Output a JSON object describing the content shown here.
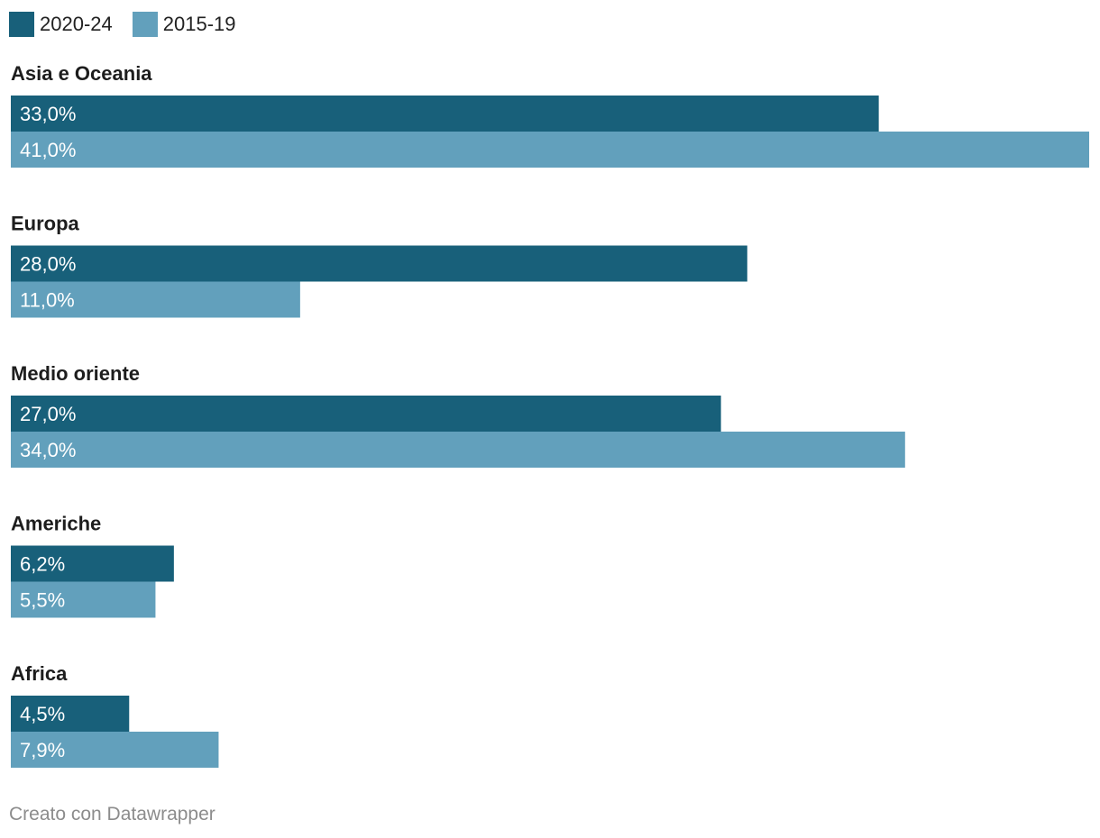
{
  "chart_data": {
    "type": "bar",
    "orientation": "horizontal",
    "categories": [
      "Asia e Oceania",
      "Europa",
      "Medio oriente",
      "Americhe",
      "Africa"
    ],
    "series": [
      {
        "name": "2020-24",
        "color": "#18607a",
        "values": [
          33.0,
          28.0,
          27.0,
          6.2,
          4.5
        ],
        "labels": [
          "33,0%",
          "28,0%",
          "27,0%",
          "6,2%",
          "4,5%"
        ]
      },
      {
        "name": "2015-19",
        "color": "#62a0bc",
        "values": [
          41.0,
          11.0,
          34.0,
          5.5,
          7.9
        ],
        "labels": [
          "41,0%",
          "11,0%",
          "34,0%",
          "5,5%",
          "7,9%"
        ]
      }
    ],
    "xlim": [
      0,
      41
    ],
    "grid": false,
    "legend_position": "top-left"
  },
  "footer": {
    "credit": "Creato con Datawrapper"
  }
}
